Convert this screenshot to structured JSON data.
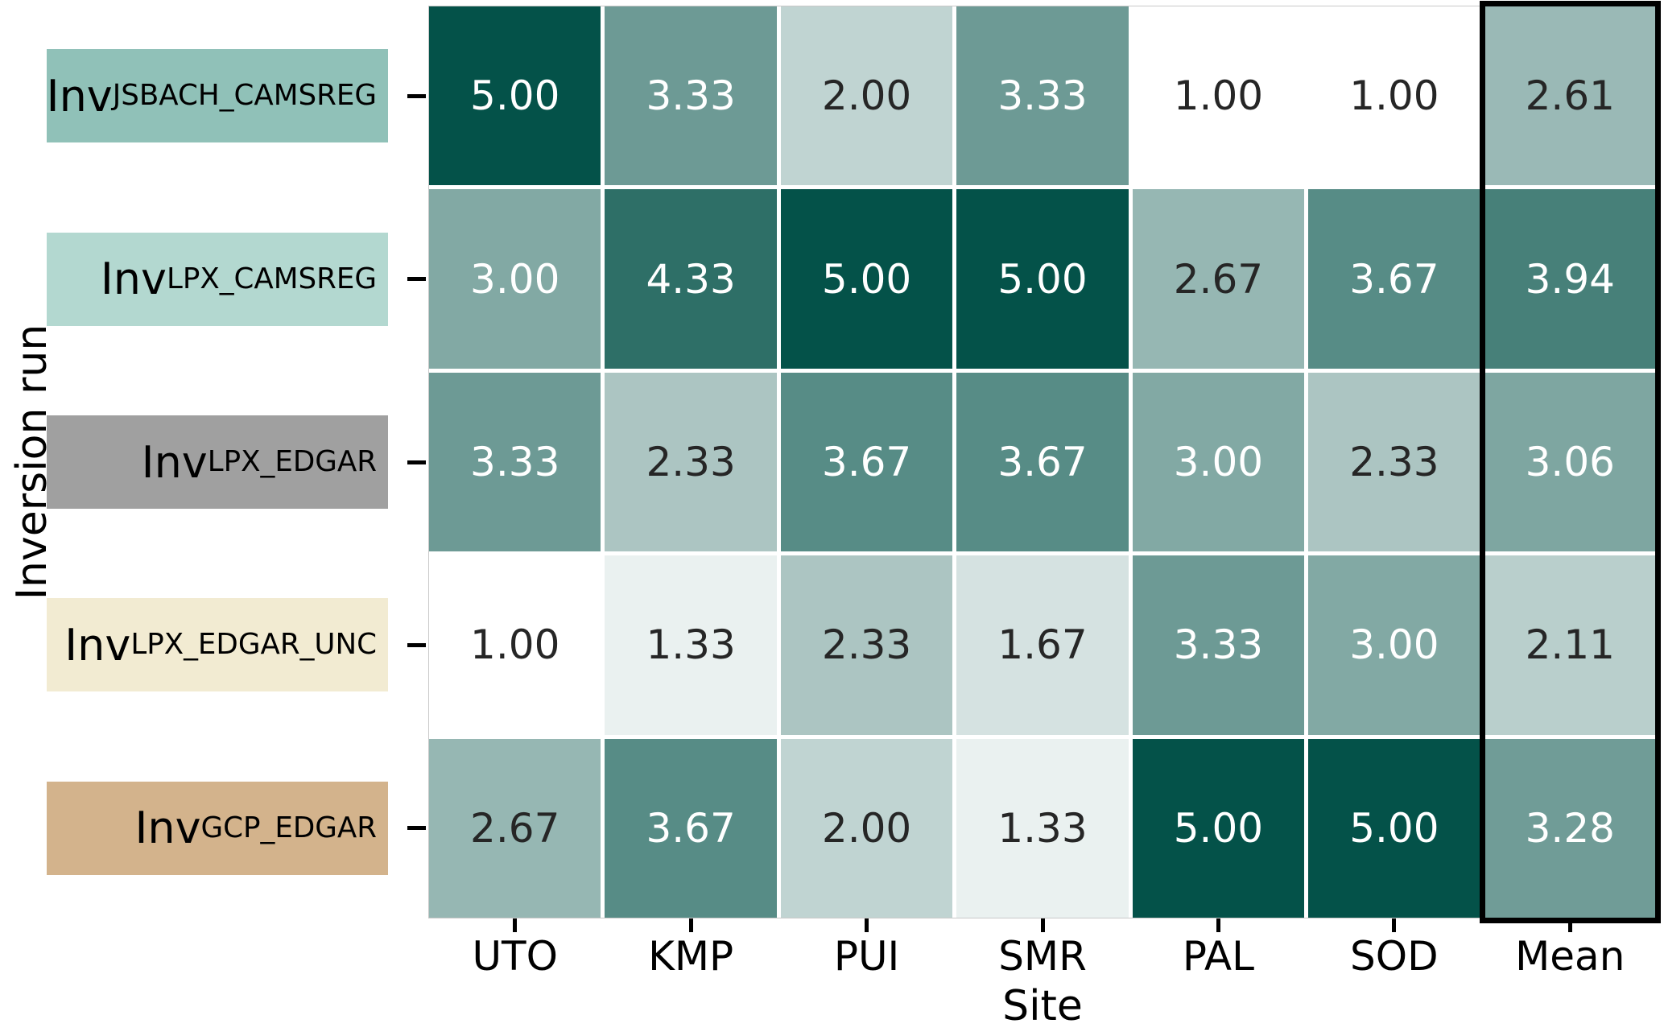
{
  "figure": {
    "ylabel": "Inversion run",
    "xlabel": "Site"
  },
  "chart_data": {
    "type": "heatmap",
    "xlabel": "Site",
    "ylabel": "Inversion run",
    "columns": [
      "UTO",
      "KMP",
      "PUI",
      "SMR",
      "PAL",
      "SOD",
      "Mean"
    ],
    "rows": [
      {
        "label": "Inv_JSBACH_CAMSREG",
        "label_base": "Inv",
        "label_subscript": "JSBACH_CAMSREG",
        "label_bg": "#90c1b8",
        "values": [
          5.0,
          3.33,
          2.0,
          3.33,
          1.0,
          1.0,
          2.61
        ]
      },
      {
        "label": "Inv_LPX_CAMSREG",
        "label_base": "Inv",
        "label_subscript": "LPX_CAMSREG",
        "label_bg": "#b3d8d0",
        "values": [
          3.0,
          4.33,
          5.0,
          5.0,
          2.67,
          3.67,
          3.94
        ]
      },
      {
        "label": "Inv_LPX_EDGAR",
        "label_base": "Inv",
        "label_subscript": "LPX_EDGAR",
        "label_bg": "#a0a0a0",
        "values": [
          3.33,
          2.33,
          3.67,
          3.67,
          3.0,
          2.33,
          3.06
        ]
      },
      {
        "label": "Inv_LPX_EDGAR_UNC",
        "label_base": "Inv",
        "label_subscript": "LPX_EDGAR_UNC",
        "label_bg": "#f2ebd2",
        "values": [
          1.0,
          1.33,
          2.33,
          1.67,
          3.33,
          3.0,
          2.11
        ]
      },
      {
        "label": "Inv_GCP_EDGAR",
        "label_base": "Inv",
        "label_subscript": "GCP_EDGAR",
        "label_bg": "#d3b38c",
        "values": [
          2.67,
          3.67,
          2.0,
          1.33,
          5.0,
          5.0,
          3.28
        ]
      }
    ],
    "decimals": 2,
    "vmin": 1.0,
    "vmax": 5.0,
    "colormap": {
      "low": "#ffffff",
      "high": "#045249"
    },
    "annotation_text": {
      "light": "#ffffff",
      "dark": "#262626",
      "light_from_value": 3.0
    },
    "grid_line_color": "#ffffff",
    "highlight": {
      "column": "Mean",
      "border_color": "#000000"
    },
    "legend": "none"
  }
}
